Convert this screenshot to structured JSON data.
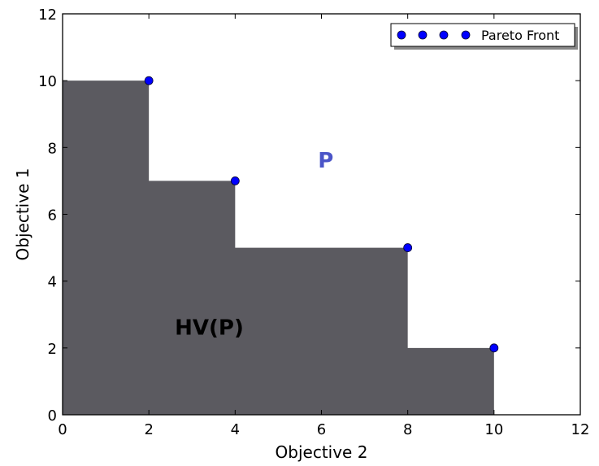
{
  "chart_data": {
    "type": "scatter",
    "title": "",
    "xlabel": "Objective 2",
    "ylabel": "Objective 1",
    "xlim": [
      0,
      12
    ],
    "ylim": [
      0,
      12
    ],
    "xticks": [
      "0",
      "2",
      "4",
      "6",
      "8",
      "10",
      "12"
    ],
    "yticks": [
      "0",
      "2",
      "4",
      "6",
      "8",
      "10",
      "12"
    ],
    "grid": false,
    "legend": {
      "position": "top-right",
      "entries": [
        "Pareto Front"
      ]
    },
    "series": [
      {
        "name": "Pareto Front",
        "points": [
          {
            "x": 2,
            "y": 10
          },
          {
            "x": 4,
            "y": 7
          },
          {
            "x": 8,
            "y": 5
          },
          {
            "x": 10,
            "y": 2
          }
        ],
        "color": "#0000ff"
      }
    ],
    "hypervolume_region": {
      "color": "#5b5a60"
    },
    "annotations": [
      {
        "text": "HV(P)",
        "x": 3.4,
        "y": 2.4
      },
      {
        "text": "P",
        "x": 6.1,
        "y": 7.4,
        "color": "#4b55c8"
      }
    ]
  }
}
